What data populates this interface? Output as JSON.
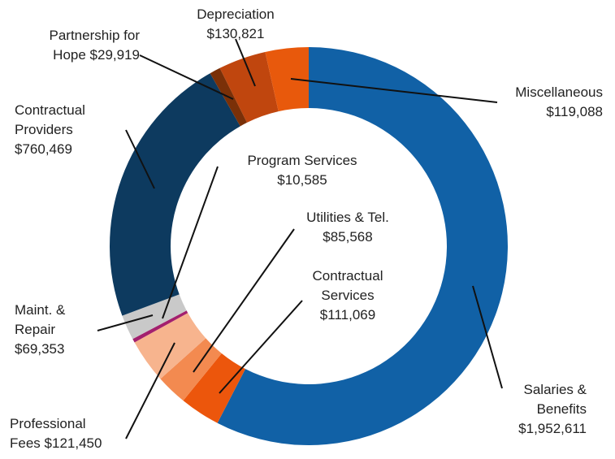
{
  "chart_data": {
    "type": "donut",
    "categories": [
      "Salaries & Benefits",
      "Contractual Services",
      "Utilities & Tel.",
      "Professional Fees",
      "Program Services",
      "Maint. & Repair",
      "Contractual Providers",
      "Partnership for Hope",
      "Depreciation",
      "Miscellaneous"
    ],
    "values": [
      1952611,
      111069,
      85568,
      121450,
      10585,
      69353,
      760469,
      29919,
      130821,
      119088
    ],
    "value_labels": [
      "$1,952,611",
      "$111,069",
      "$85,568",
      "$121,450",
      "$10,585",
      "$69,353",
      "$760,469",
      "$29,919",
      "$130,821",
      "$119,088"
    ],
    "colors": [
      "#1161a6",
      "#ec560c",
      "#f38a50",
      "#f7b48e",
      "#a3206e",
      "#c9c9c9",
      "#0d3a5f",
      "#7a3008",
      "#c0460e",
      "#e8590c"
    ]
  }
}
